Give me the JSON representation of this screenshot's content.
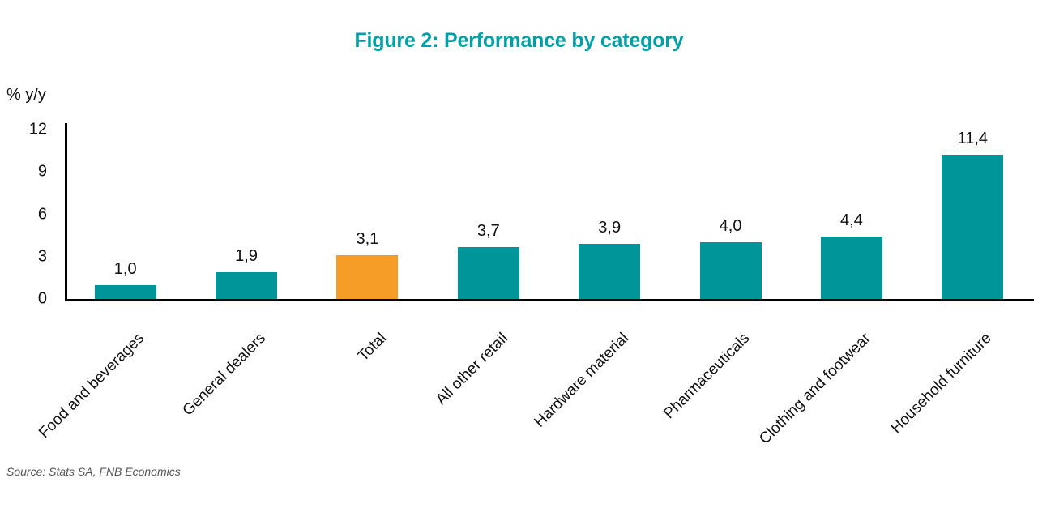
{
  "title": "Figure 2: Performance by category",
  "source_note": "Source: Stats SA, FNB Economics",
  "colors": {
    "bar_teal": "#009598",
    "bar_highlight_orange": "#F59D26",
    "title_teal": "#009FA3",
    "axis_black": "#000000",
    "source_gray": "#55565A"
  },
  "chart_data": {
    "type": "bar",
    "title": "Figure 2: Performance by category",
    "ylabel": "% y/y",
    "xlabel": "",
    "categories": [
      "Food and beverages",
      "General dealers",
      "Total",
      "All other retail",
      "Hardware material",
      "Pharmaceuticals",
      "Clothing and footwear",
      "Household furniture"
    ],
    "values": [
      1.0,
      1.9,
      3.1,
      3.7,
      3.9,
      4.0,
      4.4,
      11.4
    ],
    "value_labels": [
      "1,0",
      "1,9",
      "3,1",
      "3,7",
      "3,9",
      "4,0",
      "4,4",
      "11,4"
    ],
    "highlight_index": 2,
    "highlight_category": "Total",
    "ylim": [
      0,
      12
    ],
    "yticks": [
      0,
      3,
      6,
      9,
      12
    ],
    "grid": false,
    "legend": false,
    "bar_label_position": "above",
    "x_tick_rotation_deg": 45
  }
}
